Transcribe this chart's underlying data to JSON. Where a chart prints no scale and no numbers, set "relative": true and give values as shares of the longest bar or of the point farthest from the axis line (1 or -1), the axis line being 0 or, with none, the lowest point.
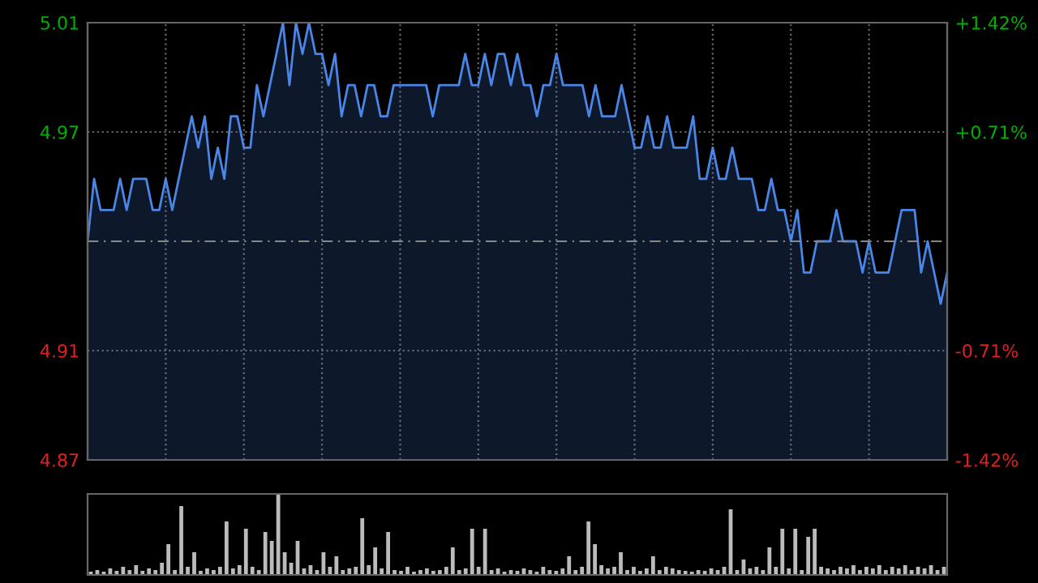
{
  "chart_data": [
    {
      "type": "area",
      "categories": [
        null,
        null,
        null,
        null,
        null,
        null,
        null,
        null,
        null,
        null,
        null,
        null,
        null,
        null,
        null,
        null,
        null,
        null,
        null,
        null,
        null,
        null,
        null,
        null,
        null,
        null,
        null,
        null,
        null,
        null,
        null,
        null,
        null,
        null,
        null,
        null,
        null,
        null,
        null,
        null,
        null,
        null,
        null,
        null,
        null,
        null,
        null,
        null,
        null,
        null,
        null,
        null,
        null,
        null,
        null,
        null,
        null,
        null,
        null,
        null,
        null,
        null,
        null,
        null,
        null,
        null,
        null,
        null,
        null,
        null,
        null,
        null,
        null,
        null,
        null,
        null,
        null,
        null,
        null,
        null,
        null,
        null,
        null,
        null,
        null,
        null,
        null,
        null,
        null,
        null,
        null,
        null,
        null,
        null,
        null,
        null,
        null,
        null,
        null,
        null,
        null,
        null,
        null,
        null,
        null,
        null,
        null,
        null,
        null,
        null,
        null,
        null,
        null,
        null,
        null,
        null,
        null,
        null,
        null,
        null,
        null,
        null,
        null,
        null,
        null,
        null,
        null,
        null,
        null,
        null,
        null,
        null,
        null
      ],
      "series": [
        {
          "color": "#4a86e8",
          "values": [
            4.94,
            4.96,
            4.95,
            4.95,
            4.95,
            4.96,
            4.95,
            4.96,
            4.96,
            4.96,
            4.95,
            4.95,
            4.96,
            4.95,
            4.96,
            4.97,
            4.98,
            4.97,
            4.98,
            4.96,
            4.97,
            4.96,
            4.98,
            4.98,
            4.97,
            4.97,
            4.99,
            4.98,
            4.99,
            5.0,
            5.01,
            4.99,
            5.01,
            5.0,
            5.01,
            5.0,
            5.0,
            4.99,
            5.0,
            4.98,
            4.99,
            4.99,
            4.98,
            4.99,
            4.99,
            4.98,
            4.98,
            4.99,
            4.99,
            4.99,
            4.99,
            4.99,
            4.99,
            4.98,
            4.99,
            4.99,
            4.99,
            4.99,
            5.0,
            4.99,
            4.99,
            5.0,
            4.99,
            5.0,
            5.0,
            4.99,
            5.0,
            4.99,
            4.99,
            4.98,
            4.99,
            4.99,
            5.0,
            4.99,
            4.99,
            4.99,
            4.99,
            4.98,
            4.99,
            4.98,
            4.98,
            4.98,
            4.99,
            4.98,
            4.97,
            4.97,
            4.98,
            4.97,
            4.97,
            4.98,
            4.97,
            4.97,
            4.97,
            4.98,
            4.96,
            4.96,
            4.97,
            4.96,
            4.96,
            4.97,
            4.96,
            4.96,
            4.96,
            4.95,
            4.95,
            4.96,
            4.95,
            4.95,
            4.94,
            4.95,
            4.93,
            4.93,
            4.94,
            4.94,
            4.94,
            4.95,
            4.94,
            4.94,
            4.94,
            4.93,
            4.94,
            4.93,
            4.93,
            4.93,
            4.94,
            4.95,
            4.95,
            4.95,
            4.93,
            4.94,
            4.93,
            4.92,
            4.93
          ]
        }
      ],
      "ylim": [
        4.87,
        5.01
      ],
      "yticks": [
        4.87,
        {
          "value": 4.905,
          "label": "4.91"
        },
        {
          "value": 4.975,
          "label": "4.97"
        },
        5.01
      ],
      "y2lim": [
        -1.42,
        1.42
      ],
      "y2ticks": [
        {
          "value": -1.42,
          "label": "-1.42%"
        },
        {
          "value": -0.71,
          "label": "-0.71%"
        },
        {
          "value": 0.71,
          "label": "+0.71%"
        },
        {
          "value": 1.42,
          "label": "+1.42%"
        }
      ],
      "ref_lines": [
        {
          "axis": "y",
          "value": 4.94,
          "line_style": "dashed",
          "color": "#888888"
        }
      ],
      "grid": true,
      "legend": false,
      "tick_labels": "y"
    },
    {
      "type": "bar",
      "relative": true,
      "tick_labels": false,
      "categories": [
        null,
        null,
        null,
        null,
        null,
        null,
        null,
        null,
        null,
        null,
        null,
        null,
        null,
        null,
        null,
        null,
        null,
        null,
        null,
        null,
        null,
        null,
        null,
        null,
        null,
        null,
        null,
        null,
        null,
        null,
        null,
        null,
        null,
        null,
        null,
        null,
        null,
        null,
        null,
        null,
        null,
        null,
        null,
        null,
        null,
        null,
        null,
        null,
        null,
        null,
        null,
        null,
        null,
        null,
        null,
        null,
        null,
        null,
        null,
        null,
        null,
        null,
        null,
        null,
        null,
        null,
        null,
        null,
        null,
        null,
        null,
        null,
        null,
        null,
        null,
        null,
        null,
        null,
        null,
        null,
        null,
        null,
        null,
        null,
        null,
        null,
        null,
        null,
        null,
        null,
        null,
        null,
        null,
        null,
        null,
        null,
        null,
        null,
        null,
        null,
        null,
        null,
        null,
        null,
        null,
        null,
        null,
        null,
        null,
        null,
        null,
        null,
        null,
        null,
        null,
        null,
        null,
        null,
        null,
        null,
        null,
        null,
        null,
        null,
        null,
        null,
        null,
        null,
        null,
        null,
        null,
        null,
        null
      ],
      "series": [
        {
          "color": "#bbbbbb",
          "values": [
            0.04,
            0.06,
            0.04,
            0.08,
            0.05,
            0.1,
            0.06,
            0.12,
            0.05,
            0.08,
            0.06,
            0.15,
            0.38,
            0.06,
            0.85,
            0.1,
            0.28,
            0.05,
            0.08,
            0.06,
            0.1,
            0.66,
            0.08,
            0.12,
            0.57,
            0.1,
            0.06,
            0.53,
            0.42,
            1.0,
            0.28,
            0.15,
            0.42,
            0.08,
            0.12,
            0.06,
            0.28,
            0.1,
            0.23,
            0.06,
            0.08,
            0.1,
            0.7,
            0.12,
            0.34,
            0.08,
            0.53,
            0.06,
            0.05,
            0.1,
            0.04,
            0.06,
            0.08,
            0.05,
            0.06,
            0.1,
            0.34,
            0.06,
            0.08,
            0.57,
            0.1,
            0.57,
            0.06,
            0.08,
            0.04,
            0.06,
            0.05,
            0.08,
            0.06,
            0.04,
            0.1,
            0.06,
            0.05,
            0.08,
            0.23,
            0.06,
            0.1,
            0.66,
            0.38,
            0.12,
            0.08,
            0.1,
            0.28,
            0.06,
            0.1,
            0.05,
            0.08,
            0.23,
            0.06,
            0.1,
            0.08,
            0.06,
            0.05,
            0.04,
            0.06,
            0.05,
            0.08,
            0.06,
            0.1,
            0.81,
            0.06,
            0.19,
            0.08,
            0.1,
            0.06,
            0.34,
            0.1,
            0.57,
            0.08,
            0.57,
            0.06,
            0.47,
            0.57,
            0.1,
            0.08,
            0.06,
            0.1,
            0.08,
            0.12,
            0.06,
            0.1,
            0.08,
            0.12,
            0.06,
            0.1,
            0.08,
            0.12,
            0.06,
            0.1,
            0.08,
            0.12,
            0.06,
            0.1
          ]
        }
      ],
      "grid": false,
      "legend": false
    }
  ]
}
